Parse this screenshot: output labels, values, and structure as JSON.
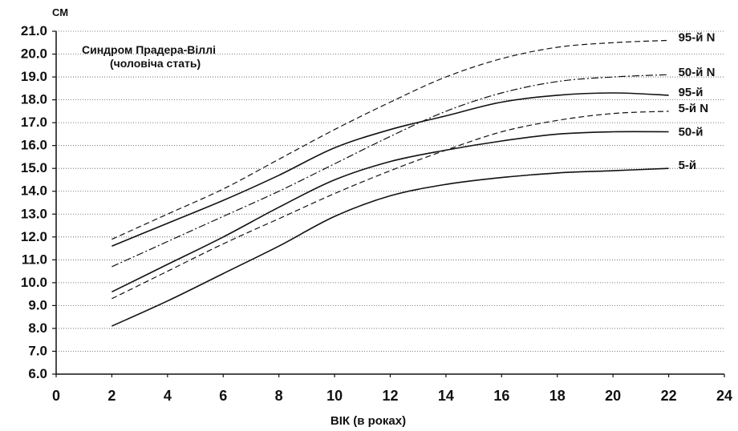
{
  "chart_data": {
    "type": "line",
    "title": "Синдром Прадера-Віллі",
    "subtitle": "(чоловіча стать)",
    "xlabel": "ВІК (в роках)",
    "ylabel": "СМ",
    "xlim": [
      0,
      24
    ],
    "ylim": [
      6.0,
      21.0
    ],
    "x_ticks": [
      "0",
      "2",
      "4",
      "6",
      "8",
      "10",
      "12",
      "14",
      "16",
      "18",
      "20",
      "22",
      "24"
    ],
    "y_ticks": [
      "6.0",
      "7.0",
      "8.0",
      "9.0",
      "10.0",
      "11.0",
      "12.0",
      "13.0",
      "14.0",
      "15.0",
      "16.0",
      "17.0",
      "18.0",
      "19.0",
      "20.0",
      "21.0"
    ],
    "grid": "horizontal dotted",
    "x": [
      2,
      4,
      6,
      8,
      10,
      12,
      14,
      16,
      18,
      20,
      22
    ],
    "series": [
      {
        "name": "95-й N",
        "style": "dashed",
        "values": [
          11.9,
          13.0,
          14.1,
          15.4,
          16.7,
          17.9,
          19.0,
          19.8,
          20.3,
          20.5,
          20.6
        ]
      },
      {
        "name": "50-й N",
        "style": "dashdot",
        "values": [
          10.7,
          11.8,
          12.9,
          14.0,
          15.2,
          16.4,
          17.5,
          18.3,
          18.8,
          19.0,
          19.1
        ]
      },
      {
        "name": "95-й",
        "style": "solid",
        "values": [
          11.6,
          12.6,
          13.6,
          14.7,
          15.9,
          16.7,
          17.3,
          17.9,
          18.2,
          18.3,
          18.2
        ]
      },
      {
        "name": "5-й N",
        "style": "dashed",
        "values": [
          9.3,
          10.5,
          11.7,
          12.8,
          13.9,
          14.9,
          15.8,
          16.6,
          17.1,
          17.4,
          17.5
        ]
      },
      {
        "name": "50-й",
        "style": "solid",
        "values": [
          9.6,
          10.8,
          12.0,
          13.3,
          14.5,
          15.3,
          15.8,
          16.2,
          16.5,
          16.6,
          16.6
        ]
      },
      {
        "name": "5-й",
        "style": "solid",
        "values": [
          8.1,
          9.2,
          10.4,
          11.6,
          12.9,
          13.8,
          14.3,
          14.6,
          14.8,
          14.9,
          15.0
        ]
      }
    ]
  }
}
